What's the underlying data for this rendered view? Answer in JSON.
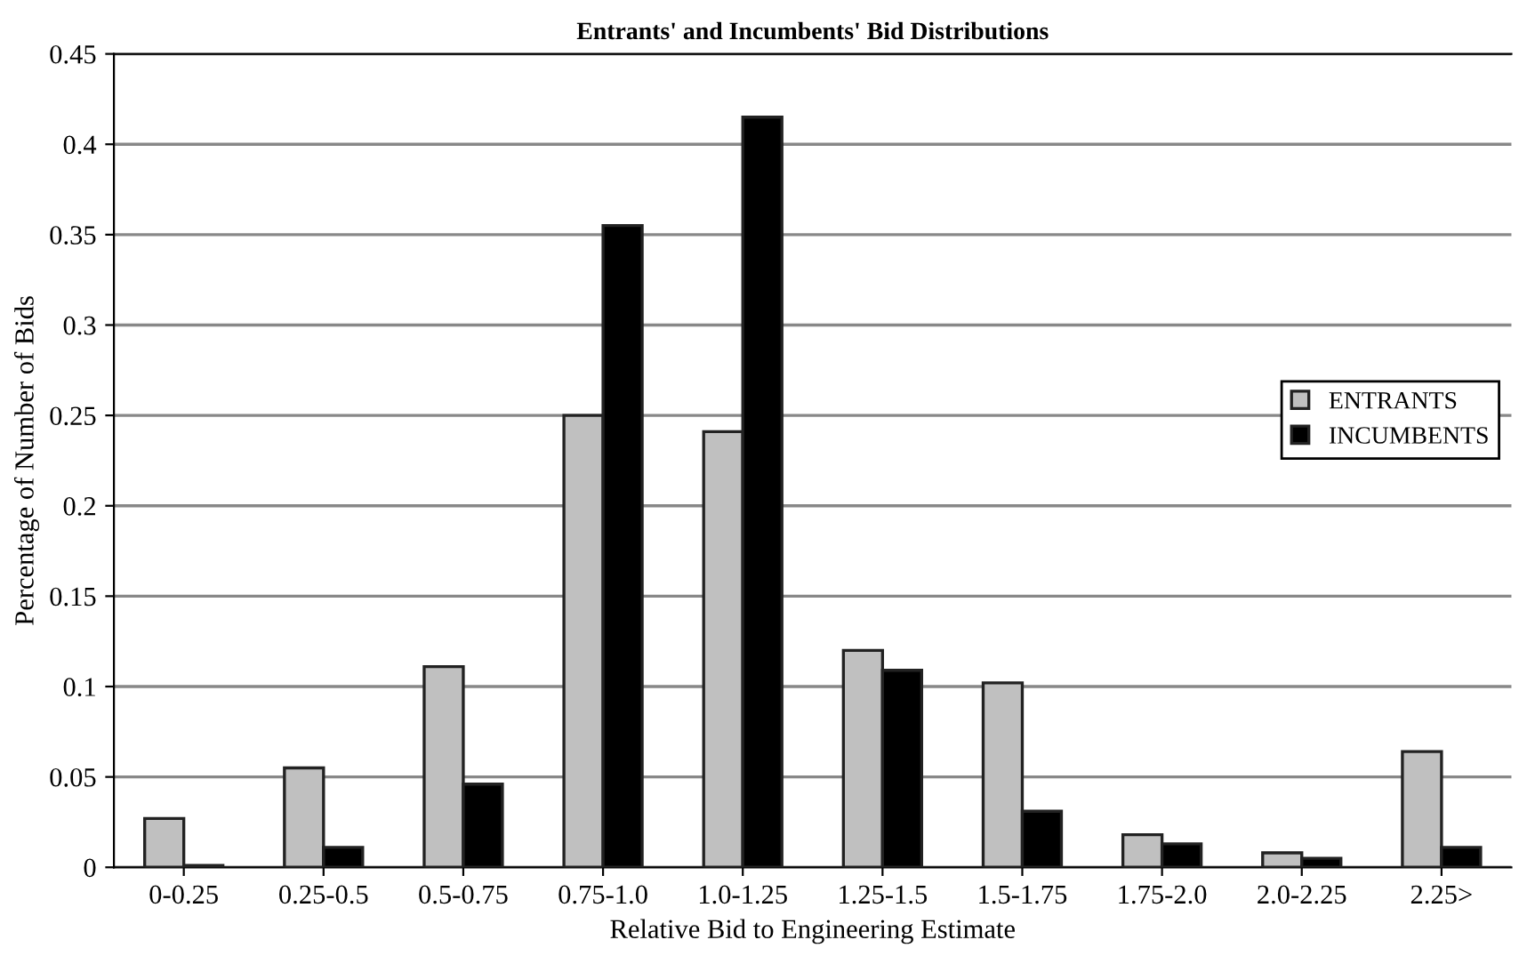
{
  "chart_data": {
    "type": "bar",
    "title": "Entrants' and Incumbents' Bid Distributions",
    "xlabel": "Relative Bid to Engineering Estimate",
    "ylabel": "Percentage of Number of Bids",
    "categories": [
      "0-0.25",
      "0.25-0.5",
      "0.5-0.75",
      "0.75-1.0",
      "1.0-1.25",
      "1.25-1.5",
      "1.5-1.75",
      "1.75-2.0",
      "2.0-2.25",
      "2.25>"
    ],
    "series": [
      {
        "name": "ENTRANTS",
        "color": "#c0c0c0",
        "values": [
          0.027,
          0.055,
          0.111,
          0.25,
          0.241,
          0.12,
          0.102,
          0.018,
          0.008,
          0.064
        ]
      },
      {
        "name": "INCUMBENTS",
        "color": "#000000",
        "values": [
          0.001,
          0.011,
          0.046,
          0.355,
          0.415,
          0.109,
          0.031,
          0.013,
          0.005,
          0.011
        ]
      }
    ],
    "ylim": [
      0,
      0.45
    ],
    "yticks": [
      0,
      0.05,
      0.1,
      0.15,
      0.2,
      0.25,
      0.3,
      0.35,
      0.4,
      0.45
    ],
    "grid": "y",
    "legend": "right"
  }
}
